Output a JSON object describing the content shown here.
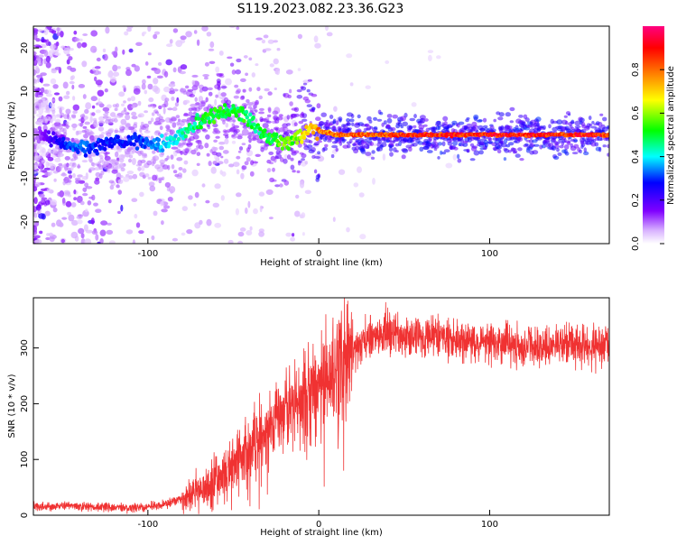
{
  "title": "S119.2023.082.23.36.G23",
  "chart_data": [
    {
      "type": "heatmap",
      "xlabel": "Height of straight line (km)",
      "ylabel": "Frequency (Hz)",
      "xlim": [
        -167,
        170
      ],
      "ylim": [
        -25,
        25
      ],
      "x_ticks": [
        -100,
        0,
        100
      ],
      "y_ticks": [
        -20,
        -10,
        0,
        10,
        20
      ],
      "grid": false,
      "colorbar": {
        "label": "Normalized spectral amplitude",
        "range": [
          0,
          1
        ],
        "ticks": [
          0.0,
          0.2,
          0.4,
          0.6,
          0.8
        ],
        "colormap": "rainbow (white-violet-blue-cyan-green-yellow-orange-red-magenta)"
      },
      "ridge": {
        "description": "dominant frequency vs height",
        "x": [
          -165,
          -150,
          -140,
          -130,
          -120,
          -110,
          -100,
          -90,
          -80,
          -70,
          -60,
          -50,
          -45,
          -40,
          -35,
          -30,
          -25,
          -20,
          -15,
          -10,
          -5,
          0,
          10,
          50,
          100,
          170
        ],
        "y": [
          0,
          -2,
          -3,
          -3,
          -2,
          -1,
          -2,
          -2,
          0,
          3,
          5,
          6,
          5,
          3,
          1,
          0,
          -1,
          -2,
          -1,
          0,
          1,
          1,
          0,
          0,
          0,
          0
        ],
        "amplitude": [
          0.1,
          0.3,
          0.35,
          0.3,
          0.3,
          0.3,
          0.35,
          0.4,
          0.45,
          0.5,
          0.55,
          0.5,
          0.55,
          0.5,
          0.5,
          0.55,
          0.55,
          0.6,
          0.6,
          0.7,
          0.75,
          0.8,
          0.85,
          0.9,
          0.92,
          0.92
        ]
      }
    },
    {
      "type": "line",
      "xlabel": "Height of straight line (km)",
      "ylabel": "SNR (10 * v/v)",
      "xlim": [
        -167,
        170
      ],
      "ylim": [
        0,
        390
      ],
      "x_ticks": [
        -100,
        0,
        100
      ],
      "y_ticks": [
        0,
        100,
        200,
        300
      ],
      "grid": false,
      "color": "#f03232",
      "series": [
        {
          "x": [
            -167,
            -150,
            -140,
            -130,
            -120,
            -110,
            -100,
            -90,
            -80,
            -70,
            -60,
            -50,
            -40,
            -30,
            -20,
            -10,
            0,
            10,
            20,
            30,
            40,
            50,
            60,
            70,
            80,
            90,
            100,
            110,
            120,
            130,
            140,
            150,
            160,
            170
          ],
          "values": [
            15,
            17,
            16,
            15,
            14,
            13,
            15,
            20,
            30,
            45,
            65,
            90,
            120,
            160,
            190,
            210,
            230,
            265,
            295,
            318,
            322,
            325,
            322,
            318,
            312,
            312,
            310,
            307,
            305,
            303,
            305,
            303,
            302,
            303
          ]
        }
      ]
    }
  ]
}
